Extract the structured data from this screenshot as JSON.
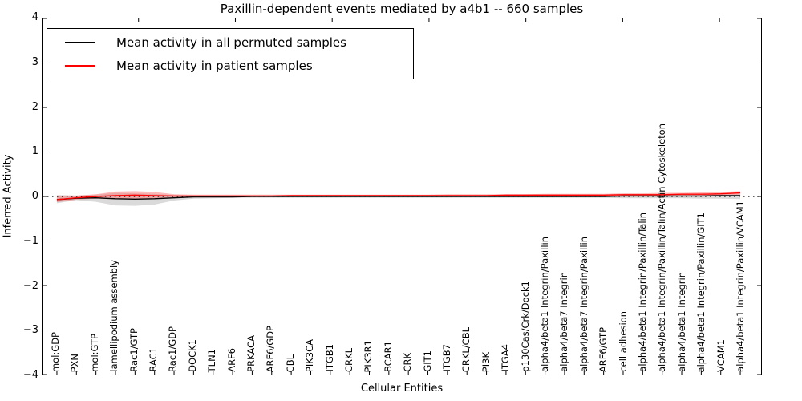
{
  "chart_data": {
    "type": "line",
    "title": "Paxillin-dependent events mediated by a4b1 -- 660 samples",
    "xlabel": "Cellular Entities",
    "ylabel": "Inferred Activity",
    "ylim": [
      -4,
      4
    ],
    "yticks": [
      4,
      3,
      2,
      1,
      0,
      -1,
      -2,
      -3,
      -4
    ],
    "ytick_labels": [
      "4",
      "3",
      "2",
      "1",
      "0",
      "−1",
      "−2",
      "−3",
      "−4"
    ],
    "grid": false,
    "legend_position": "upper left",
    "zero_line": {
      "style": "dotted",
      "color": "#000000",
      "y": 0
    },
    "categories": [
      "mol:GDP",
      "PXN",
      "mol:GTP",
      "lamellipodium assembly",
      "Rac1/GTP",
      "RAC1",
      "Rac1/GDP",
      "DOCK1",
      "TLN1",
      "ARF6",
      "PRKACA",
      "ARF6/GDP",
      "CBL",
      "PIK3CA",
      "ITGB1",
      "CRKL",
      "PIK3R1",
      "BCAR1",
      "CRK",
      "GIT1",
      "ITGB7",
      "CRKL/CBL",
      "PI3K",
      "ITGA4",
      "p130Cas/Crk/Dock1",
      "alpha4/beta1 Integrin/Paxillin",
      "alpha4/beta7 Integrin",
      "alpha4/beta7 Integrin/Paxillin",
      "ARF6/GTP",
      "cell adhesion",
      "alpha4/beta1 Integrin/Paxillin/Talin",
      "alpha4/beta1 Integrin/Paxillin/Talin/Actin Cytoskeleton",
      "alpha4/beta1 Integrin",
      "alpha4/beta1 Integrin/Paxillin/GIT1",
      "VCAM1",
      "alpha4/beta1 Integrin/Paxillin/VCAM1"
    ],
    "series": [
      {
        "name": "Mean activity in all permuted samples",
        "color": "#000000",
        "band_color": "#bbbbbb",
        "band_opacity": 0.55,
        "values": [
          -0.07,
          -0.04,
          -0.03,
          -0.05,
          -0.06,
          -0.05,
          -0.03,
          -0.01,
          -0.01,
          -0.01,
          0,
          0,
          0,
          0,
          0,
          0,
          0,
          0,
          0,
          0,
          0,
          0,
          0,
          0,
          0,
          0,
          0,
          0,
          0,
          0.01,
          0.01,
          0.01,
          0.01,
          0.01,
          0.02,
          0.02
        ],
        "band_upper": [
          0.03,
          0.02,
          0.04,
          0.08,
          0.07,
          0.06,
          0.03,
          0.02,
          0.02,
          0.02,
          0.02,
          0.02,
          0.02,
          0.02,
          0.02,
          0.02,
          0.02,
          0.02,
          0.02,
          0.02,
          0.02,
          0.02,
          0.02,
          0.03,
          0.03,
          0.03,
          0.03,
          0.03,
          0.03,
          0.03,
          0.03,
          0.04,
          0.04,
          0.04,
          0.05,
          0.05
        ],
        "band_lower": [
          -0.15,
          -0.08,
          -0.12,
          -0.2,
          -0.21,
          -0.18,
          -0.09,
          -0.05,
          -0.04,
          -0.03,
          -0.03,
          -0.03,
          -0.03,
          -0.03,
          -0.03,
          -0.03,
          -0.03,
          -0.03,
          -0.03,
          -0.03,
          -0.03,
          -0.03,
          -0.03,
          -0.03,
          -0.03,
          -0.03,
          -0.03,
          -0.03,
          -0.03,
          -0.04,
          -0.04,
          -0.04,
          -0.04,
          -0.05,
          -0.05,
          -0.06
        ]
      },
      {
        "name": "Mean activity in patient samples",
        "color": "#ff0000",
        "band_color": "#ff6666",
        "band_opacity": 0.45,
        "values": [
          -0.07,
          -0.03,
          0,
          0.02,
          0.03,
          0.02,
          0.01,
          0.01,
          0.01,
          0.01,
          0.01,
          0.01,
          0.02,
          0.02,
          0.02,
          0.02,
          0.02,
          0.02,
          0.02,
          0.02,
          0.02,
          0.02,
          0.02,
          0.03,
          0.03,
          0.03,
          0.03,
          0.03,
          0.03,
          0.04,
          0.04,
          0.04,
          0.05,
          0.05,
          0.06,
          0.08
        ],
        "band_upper": [
          0.02,
          0.02,
          0.05,
          0.11,
          0.12,
          0.1,
          0.05,
          0.04,
          0.04,
          0.04,
          0.04,
          0.04,
          0.04,
          0.04,
          0.04,
          0.04,
          0.04,
          0.04,
          0.04,
          0.04,
          0.05,
          0.05,
          0.05,
          0.05,
          0.05,
          0.06,
          0.06,
          0.06,
          0.06,
          0.07,
          0.07,
          0.08,
          0.08,
          0.09,
          0.1,
          0.12
        ],
        "band_lower": [
          -0.13,
          -0.07,
          -0.05,
          -0.06,
          -0.05,
          -0.05,
          -0.03,
          -0.02,
          -0.01,
          -0.01,
          -0.01,
          -0.01,
          -0.01,
          0,
          0,
          0,
          0,
          0,
          0,
          0,
          0,
          0,
          0,
          0,
          0,
          0.01,
          0.01,
          0.01,
          0.01,
          0.01,
          0.01,
          0.02,
          0.02,
          0.02,
          0.03,
          0.04
        ]
      }
    ]
  }
}
